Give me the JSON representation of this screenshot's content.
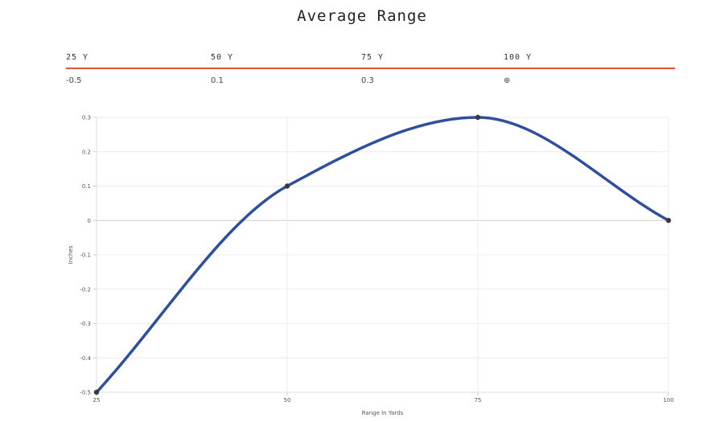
{
  "title": "Average Range",
  "range_table": {
    "headers": [
      "25 Y",
      "50 Y",
      "75 Y",
      "100 Y"
    ],
    "values": [
      "-0.5",
      "0.1",
      "0.3",
      "⊕"
    ]
  },
  "chart_data": {
    "type": "line",
    "x": [
      25,
      50,
      75,
      100
    ],
    "y": [
      -0.5,
      0.1,
      0.3,
      0
    ],
    "xlabel": "Range In Yards",
    "ylabel": "Inches",
    "xlim": [
      25,
      100
    ],
    "ylim": [
      -0.5,
      0.3
    ],
    "xticks": [
      "25",
      "50",
      "75",
      "100"
    ],
    "yticks": [
      "0.3",
      "0.2",
      "0.1",
      "0",
      "-0.1",
      "-0.2",
      "-0.3",
      "-0.4",
      "-0.5"
    ],
    "grid": true,
    "line_color": "#2d4f9e",
    "point_color": "#3a3a3a"
  }
}
